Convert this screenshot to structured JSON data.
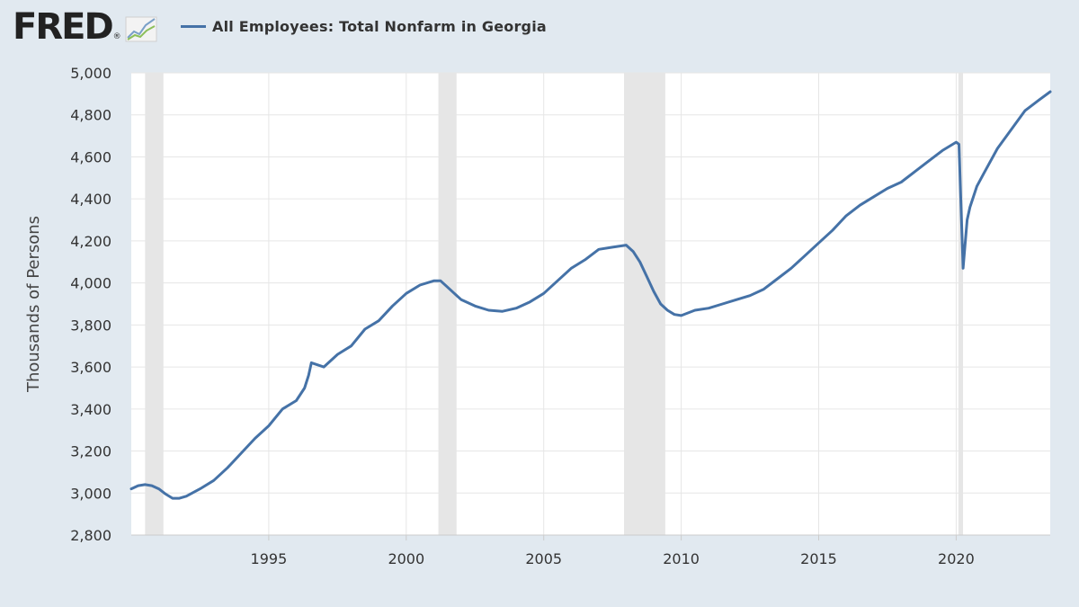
{
  "header": {
    "logo_text": "FRED",
    "logo_mark": "®",
    "logo_icon": "line-chart-icon"
  },
  "colors": {
    "background": "#e1e9f0",
    "plot_background": "#ffffff",
    "series": "#4572a7",
    "recession": "#e6e6e6",
    "grid": "#e6e6e6"
  },
  "chart_data": {
    "type": "line",
    "title": "",
    "xlabel": "",
    "ylabel": "Thousands of Persons",
    "xlim": [
      1990.0,
      2023.42
    ],
    "ylim": [
      2800,
      5000
    ],
    "grid": true,
    "legend_position": "top-left",
    "y_ticks": [
      2800,
      3000,
      3200,
      3400,
      3600,
      3800,
      4000,
      4200,
      4400,
      4600,
      4800,
      5000
    ],
    "y_tick_labels": [
      "2,800",
      "3,000",
      "3,200",
      "3,400",
      "3,600",
      "3,800",
      "4,000",
      "4,200",
      "4,400",
      "4,600",
      "4,800",
      "5,000"
    ],
    "x_ticks": [
      1995,
      2000,
      2005,
      2010,
      2015,
      2020
    ],
    "x_tick_labels": [
      "1995",
      "2000",
      "2005",
      "2010",
      "2015",
      "2020"
    ],
    "recessions": [
      {
        "start": 1990.5,
        "end": 1991.17
      },
      {
        "start": 2001.17,
        "end": 2001.83
      },
      {
        "start": 2007.92,
        "end": 2009.42
      },
      {
        "start": 2020.08,
        "end": 2020.25
      }
    ],
    "series": [
      {
        "name": "All Employees: Total Nonfarm in Georgia",
        "x": [
          1990.0,
          1990.25,
          1990.5,
          1990.75,
          1991.0,
          1991.25,
          1991.5,
          1991.75,
          1992.0,
          1992.5,
          1993.0,
          1993.5,
          1994.0,
          1994.5,
          1995.0,
          1995.5,
          1996.0,
          1996.3,
          1996.45,
          1996.55,
          1997.0,
          1997.5,
          1998.0,
          1998.5,
          1999.0,
          1999.5,
          2000.0,
          2000.5,
          2001.0,
          2001.25,
          2001.5,
          2001.75,
          2002.0,
          2002.5,
          2003.0,
          2003.5,
          2004.0,
          2004.5,
          2005.0,
          2005.5,
          2006.0,
          2006.5,
          2007.0,
          2007.5,
          2008.0,
          2008.25,
          2008.5,
          2008.75,
          2009.0,
          2009.25,
          2009.5,
          2009.75,
          2010.0,
          2010.5,
          2011.0,
          2011.5,
          2012.0,
          2012.5,
          2013.0,
          2013.5,
          2014.0,
          2014.5,
          2015.0,
          2015.5,
          2016.0,
          2016.5,
          2017.0,
          2017.5,
          2018.0,
          2018.5,
          2019.0,
          2019.5,
          2020.0,
          2020.1,
          2020.25,
          2020.4,
          2020.5,
          2020.75,
          2021.0,
          2021.5,
          2022.0,
          2022.5,
          2023.0,
          2023.42
        ],
        "values": [
          3020,
          3035,
          3040,
          3035,
          3020,
          2995,
          2975,
          2975,
          2985,
          3020,
          3060,
          3120,
          3190,
          3260,
          3320,
          3400,
          3440,
          3500,
          3560,
          3620,
          3600,
          3660,
          3700,
          3780,
          3820,
          3890,
          3950,
          3990,
          4010,
          4010,
          3980,
          3950,
          3920,
          3890,
          3870,
          3865,
          3880,
          3910,
          3950,
          4010,
          4070,
          4110,
          4160,
          4170,
          4180,
          4150,
          4100,
          4030,
          3960,
          3900,
          3870,
          3850,
          3845,
          3870,
          3880,
          3900,
          3920,
          3940,
          3970,
          4020,
          4070,
          4130,
          4190,
          4250,
          4320,
          4370,
          4410,
          4450,
          4480,
          4530,
          4580,
          4630,
          4670,
          4660,
          4070,
          4300,
          4360,
          4460,
          4520,
          4640,
          4730,
          4820,
          4870,
          4910
        ]
      }
    ]
  }
}
